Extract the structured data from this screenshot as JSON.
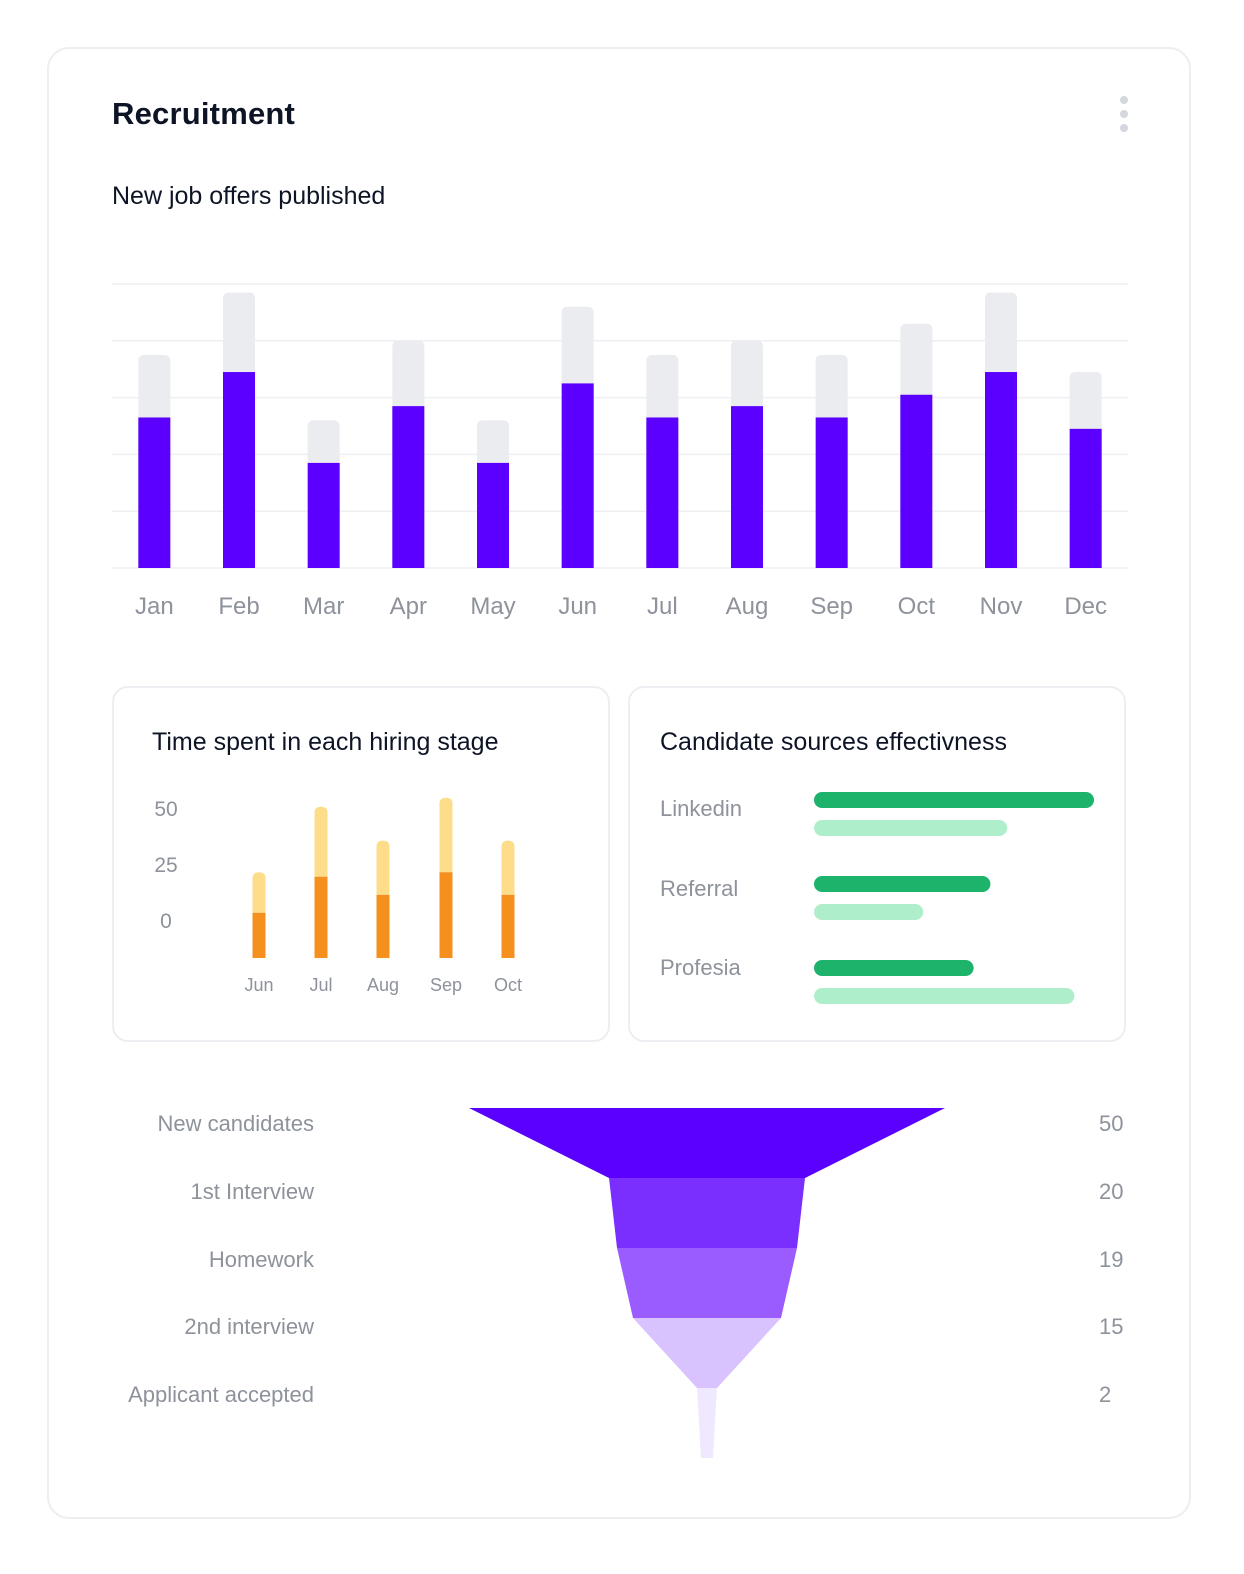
{
  "card": {
    "title": "Recruitment"
  },
  "icons": {
    "more": "vertical-dots-icon"
  },
  "colors": {
    "primary": "#5b00ff",
    "bar_track": "#ebecef",
    "orange": "#f5901e",
    "orange_light": "#fddc8a",
    "green": "#1db36a",
    "green_light": "#aeeecb",
    "funnel": [
      "#5b00ff",
      "#7b2fff",
      "#9a5cff",
      "#d8c3ff",
      "#efe8ff"
    ],
    "muted_text": "#8d929b"
  },
  "chart_data": [
    {
      "id": "job-offers",
      "type": "bar",
      "title": "New job offers published",
      "categories": [
        "Jan",
        "Feb",
        "Mar",
        "Apr",
        "May",
        "Jun",
        "Jul",
        "Aug",
        "Sep",
        "Oct",
        "Nov",
        "Dec"
      ],
      "series": [
        {
          "values": [
            53,
            69,
            37,
            57,
            37,
            65,
            53,
            57,
            53,
            61,
            69,
            49
          ]
        },
        {
          "values": [
            75,
            97,
            52,
            80,
            52,
            92,
            75,
            80,
            75,
            86,
            97,
            69
          ]
        }
      ],
      "ylim": [
        0,
        100
      ],
      "grid": true
    },
    {
      "id": "hiring-stage",
      "type": "bar",
      "stacked": true,
      "title": "Time spent in each hiring stage",
      "categories": [
        "Jun",
        "Jul",
        "Aug",
        "Sep",
        "Oct"
      ],
      "yticks": [
        "50",
        "25",
        "0"
      ],
      "series": [
        {
          "values": [
            20,
            36,
            28,
            38,
            28
          ]
        },
        {
          "values": [
            18,
            31,
            24,
            33,
            24
          ]
        }
      ],
      "ylim": [
        0,
        70
      ],
      "grid": false
    },
    {
      "id": "candidate-sources",
      "type": "bar",
      "orientation": "horizontal",
      "title": "Candidate sources effectivness",
      "categories": [
        "Linkedin",
        "Referral",
        "Profesia"
      ],
      "series": [
        {
          "values": [
            100,
            63,
            57
          ]
        },
        {
          "values": [
            69,
            39,
            93
          ]
        }
      ],
      "xlim": [
        0,
        100
      ]
    },
    {
      "id": "hiring-funnel",
      "type": "funnel",
      "categories": [
        "New candidates",
        "1st Interview",
        "Homework",
        "2nd interview",
        "Applicant accepted"
      ],
      "values": [
        50,
        20,
        19,
        15,
        2
      ]
    }
  ]
}
